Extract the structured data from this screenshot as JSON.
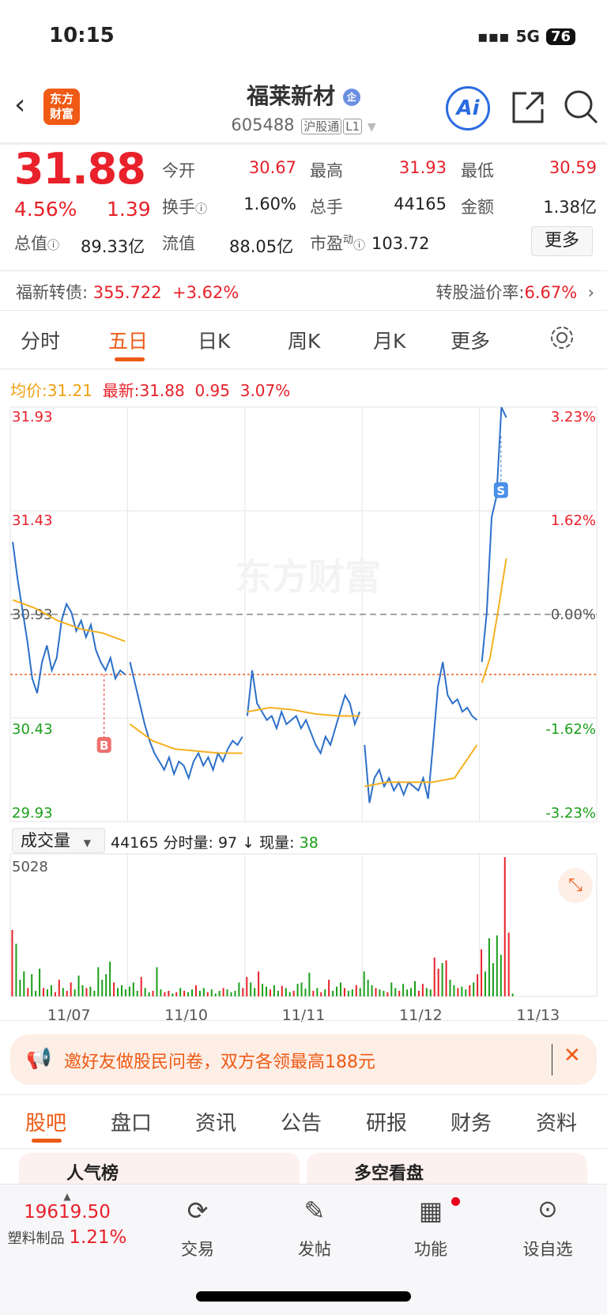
{
  "status": {
    "time": "10:15",
    "network": "5G",
    "battery": "76"
  },
  "header": {
    "logo": "东方财富",
    "title": "福莱新材",
    "enterprise_badge": "企",
    "code": "605488",
    "tags": [
      "沪股通",
      "L1"
    ],
    "icons": [
      "back-icon",
      "ai-icon",
      "share-icon",
      "search-icon"
    ],
    "ai_label": "Ai"
  },
  "quote": {
    "price": "31.88",
    "change_pct": "4.56%",
    "change": "1.39",
    "fields": [
      {
        "label": "今开",
        "value": "30.67",
        "color": "red"
      },
      {
        "label": "最高",
        "value": "31.93",
        "color": "red"
      },
      {
        "label": "最低",
        "value": "30.59",
        "color": "red"
      },
      {
        "label": "换手",
        "value": "1.60%"
      },
      {
        "label": "总手",
        "value": "44165"
      },
      {
        "label": "金额",
        "value": "1.38亿"
      },
      {
        "label": "总值",
        "value": "89.33亿"
      },
      {
        "label": "流值",
        "value": "88.05亿"
      },
      {
        "label": "市盈",
        "sup": "动",
        "value": "103.72"
      }
    ],
    "more": "更多"
  },
  "bond": {
    "label": "福新转债:",
    "price": "355.722",
    "change": "+3.62%",
    "premium_label": "转股溢价率:",
    "premium": "6.67%"
  },
  "chart_tabs": [
    "分时",
    "五日",
    "日K",
    "周K",
    "月K",
    "更多"
  ],
  "active_tab": "五日",
  "legend": {
    "avg_label": "均价:",
    "avg": "31.21",
    "latest_label": "最新:",
    "latest": "31.88",
    "chg": "0.95",
    "pct": "3.07%"
  },
  "watermark": "东方财富",
  "chart_data": {
    "type": "line",
    "ylim": [
      29.93,
      31.93
    ],
    "y_ticks_left": [
      "31.93",
      "31.43",
      "30.93",
      "30.43",
      "29.93"
    ],
    "y_ticks_right": [
      "3.23%",
      "1.62%",
      "0.00%",
      "-1.62%",
      "-3.23%"
    ],
    "prev_close": 30.93,
    "reference_line": 30.64,
    "x_labels": [
      "11/07",
      "11/10",
      "11/11",
      "11/12",
      "11/13"
    ],
    "markers": [
      {
        "label": "B",
        "day": 0,
        "price": 30.64
      },
      {
        "label": "S",
        "day": 4,
        "price": 31.79
      }
    ],
    "price": [
      [
        31.28,
        31.1,
        30.95,
        30.8,
        30.62,
        30.55,
        30.7,
        30.78,
        30.66,
        30.72,
        30.9,
        30.98,
        30.94,
        30.85,
        30.9,
        30.82,
        30.88,
        30.76,
        30.7,
        30.66,
        30.72,
        30.62,
        30.66,
        30.64
      ],
      [
        30.7,
        30.6,
        30.5,
        30.4,
        30.32,
        30.26,
        30.22,
        30.18,
        30.24,
        30.16,
        30.22,
        30.2,
        30.14,
        30.22,
        30.26,
        30.2,
        30.24,
        30.18,
        30.26,
        30.22,
        30.28,
        30.32,
        30.3,
        30.34
      ],
      [
        30.44,
        30.66,
        30.5,
        30.46,
        30.42,
        30.44,
        30.38,
        30.46,
        30.4,
        30.42,
        30.44,
        30.38,
        30.42,
        30.36,
        30.3,
        30.26,
        30.34,
        30.3,
        30.38,
        30.46,
        30.54,
        30.5,
        30.4,
        30.46
      ],
      [
        30.3,
        30.02,
        30.14,
        30.18,
        30.1,
        30.14,
        30.08,
        30.12,
        30.06,
        30.12,
        30.1,
        30.08,
        30.14,
        30.04,
        30.3,
        30.58,
        30.7,
        30.54,
        30.5,
        30.52,
        30.46,
        30.48,
        30.44,
        30.42
      ],
      [
        30.7,
        30.94,
        31.4,
        31.5,
        31.93,
        31.88
      ]
    ],
    "avg": [
      [
        31.0,
        30.96,
        30.9,
        30.86,
        30.84,
        30.8
      ],
      [
        30.4,
        30.32,
        30.28,
        30.27,
        30.26,
        30.26
      ],
      [
        30.46,
        30.48,
        30.47,
        30.45,
        30.44,
        30.44
      ],
      [
        30.1,
        30.12,
        30.12,
        30.12,
        30.14,
        30.3
      ],
      [
        30.6,
        30.72,
        30.95,
        31.2
      ]
    ],
    "volume_label": "成交量",
    "volume_total": "44165",
    "minute_vol_label": "分时量:",
    "minute_vol": "97",
    "minute_arrow": "↓",
    "current_vol_label": "现量:",
    "current_vol": "38",
    "volume_max": 5028,
    "volume_max_label": "5028",
    "volume": [
      [
        [
          2400,
          "r"
        ],
        [
          1900,
          "g"
        ],
        [
          600,
          "g"
        ],
        [
          900,
          "g"
        ],
        [
          300,
          "r"
        ],
        [
          800,
          "g"
        ],
        [
          200,
          "g"
        ],
        [
          1000,
          "g"
        ],
        [
          300,
          "r"
        ],
        [
          250,
          "g"
        ],
        [
          400,
          "g"
        ],
        [
          150,
          "r"
        ],
        [
          600,
          "r"
        ],
        [
          300,
          "g"
        ],
        [
          200,
          "r"
        ],
        [
          500,
          "r"
        ],
        [
          250,
          "g"
        ],
        [
          750,
          "g"
        ],
        [
          400,
          "g"
        ],
        [
          300,
          "r"
        ],
        [
          350,
          "g"
        ],
        [
          200,
          "g"
        ],
        [
          1050,
          "g"
        ],
        [
          600,
          "g"
        ],
        [
          800,
          "g"
        ],
        [
          1250,
          "g"
        ],
        [
          500,
          "r"
        ],
        [
          300,
          "g"
        ],
        [
          400,
          "g"
        ],
        [
          250,
          "g"
        ]
      ],
      [
        [
          350,
          "g"
        ],
        [
          500,
          "g"
        ],
        [
          200,
          "g"
        ],
        [
          700,
          "r"
        ],
        [
          300,
          "g"
        ],
        [
          150,
          "g"
        ],
        [
          200,
          "r"
        ],
        [
          1050,
          "g"
        ],
        [
          250,
          "g"
        ],
        [
          150,
          "r"
        ],
        [
          200,
          "r"
        ],
        [
          100,
          "g"
        ],
        [
          150,
          "r"
        ],
        [
          300,
          "g"
        ],
        [
          200,
          "r"
        ],
        [
          150,
          "g"
        ],
        [
          250,
          "g"
        ],
        [
          400,
          "r"
        ],
        [
          200,
          "g"
        ],
        [
          300,
          "g"
        ],
        [
          150,
          "r"
        ],
        [
          250,
          "g"
        ],
        [
          100,
          "g"
        ],
        [
          200,
          "g"
        ],
        [
          300,
          "r"
        ],
        [
          250,
          "g"
        ],
        [
          150,
          "g"
        ],
        [
          200,
          "g"
        ],
        [
          500,
          "g"
        ],
        [
          300,
          "r"
        ]
      ],
      [
        [
          700,
          "r"
        ],
        [
          500,
          "g"
        ],
        [
          300,
          "g"
        ],
        [
          900,
          "r"
        ],
        [
          450,
          "g"
        ],
        [
          350,
          "g"
        ],
        [
          250,
          "r"
        ],
        [
          400,
          "g"
        ],
        [
          200,
          "g"
        ],
        [
          380,
          "r"
        ],
        [
          300,
          "g"
        ],
        [
          150,
          "g"
        ],
        [
          200,
          "r"
        ],
        [
          450,
          "g"
        ],
        [
          500,
          "g"
        ],
        [
          280,
          "g"
        ],
        [
          850,
          "g"
        ],
        [
          200,
          "r"
        ],
        [
          300,
          "g"
        ],
        [
          150,
          "r"
        ],
        [
          250,
          "g"
        ],
        [
          600,
          "r"
        ],
        [
          200,
          "g"
        ],
        [
          350,
          "g"
        ],
        [
          500,
          "g"
        ],
        [
          300,
          "r"
        ],
        [
          200,
          "g"
        ],
        [
          250,
          "g"
        ],
        [
          400,
          "r"
        ],
        [
          300,
          "g"
        ]
      ],
      [
        [
          900,
          "g"
        ],
        [
          600,
          "g"
        ],
        [
          400,
          "g"
        ],
        [
          300,
          "r"
        ],
        [
          250,
          "g"
        ],
        [
          200,
          "g"
        ],
        [
          150,
          "r"
        ],
        [
          500,
          "g"
        ],
        [
          300,
          "g"
        ],
        [
          200,
          "r"
        ],
        [
          450,
          "g"
        ],
        [
          250,
          "g"
        ],
        [
          300,
          "g"
        ],
        [
          550,
          "g"
        ],
        [
          200,
          "r"
        ],
        [
          450,
          "r"
        ],
        [
          300,
          "g"
        ],
        [
          250,
          "g"
        ],
        [
          1400,
          "r"
        ],
        [
          1000,
          "r"
        ],
        [
          1200,
          "g"
        ],
        [
          1300,
          "r"
        ],
        [
          600,
          "g"
        ],
        [
          400,
          "g"
        ],
        [
          300,
          "r"
        ],
        [
          350,
          "g"
        ],
        [
          250,
          "g"
        ],
        [
          400,
          "r"
        ],
        [
          500,
          "g"
        ],
        [
          800,
          "r"
        ]
      ],
      [
        [
          1700,
          "r"
        ],
        [
          900,
          "g"
        ],
        [
          2100,
          "g"
        ],
        [
          1200,
          "g"
        ],
        [
          2200,
          "g"
        ],
        [
          1500,
          "g"
        ],
        [
          5028,
          "r"
        ],
        [
          2300,
          "r"
        ],
        [
          100,
          "g"
        ]
      ]
    ]
  },
  "banner": {
    "text": "邀好友做股民问卷，双方各领最高188元"
  },
  "content_tabs": [
    "股吧",
    "盘口",
    "资讯",
    "公告",
    "研报",
    "财务",
    "资料"
  ],
  "active_content_tab": "股吧",
  "cards": [
    "人气榜",
    "多空看盘"
  ],
  "bottom_bar": {
    "index_value": "19619.50",
    "index_name": "塑料制品",
    "index_pct": "1.21%",
    "items": [
      {
        "label": "交易",
        "icon": "yen-exchange-icon"
      },
      {
        "label": "发帖",
        "icon": "compose-icon"
      },
      {
        "label": "功能",
        "icon": "grid-icon"
      },
      {
        "label": "设自选",
        "icon": "more-circle-icon"
      }
    ]
  },
  "colors": {
    "up": "#e8212a",
    "down": "#1a9e1a",
    "price_line": "#2c6fc9",
    "avg_line": "#f5b020",
    "accent": "#ee5a14"
  }
}
